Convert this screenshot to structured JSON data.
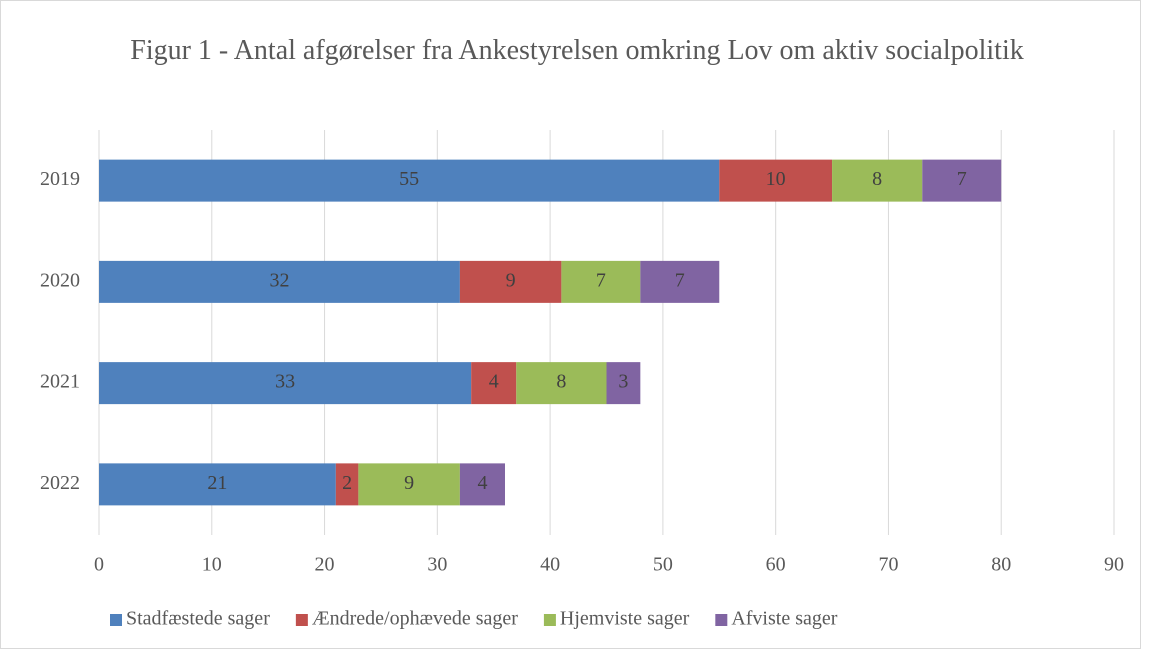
{
  "chart_data": {
    "type": "stacked_barh",
    "title": "Figur 1 - Antal afgørelser fra Ankestyrelsen omkring Lov om aktiv socialpolitik",
    "categories": [
      "2019",
      "2020",
      "2021",
      "2022"
    ],
    "series": [
      {
        "name": "Stadfæstede sager",
        "color": "#4f81bd",
        "values": [
          55,
          32,
          33,
          21
        ]
      },
      {
        "name": "Ændrede/ophævede sager",
        "color": "#c0504d",
        "values": [
          10,
          9,
          4,
          2
        ]
      },
      {
        "name": "Hjemviste sager",
        "color": "#9bbb59",
        "values": [
          8,
          7,
          8,
          9
        ]
      },
      {
        "name": "Afviste sager",
        "color": "#8064a2",
        "values": [
          7,
          7,
          3,
          4
        ]
      }
    ],
    "xlim": [
      0,
      90
    ],
    "xticks": [
      0,
      10,
      20,
      30,
      40,
      50,
      60,
      70,
      80,
      90
    ],
    "grid": true,
    "legend": "bottom"
  }
}
